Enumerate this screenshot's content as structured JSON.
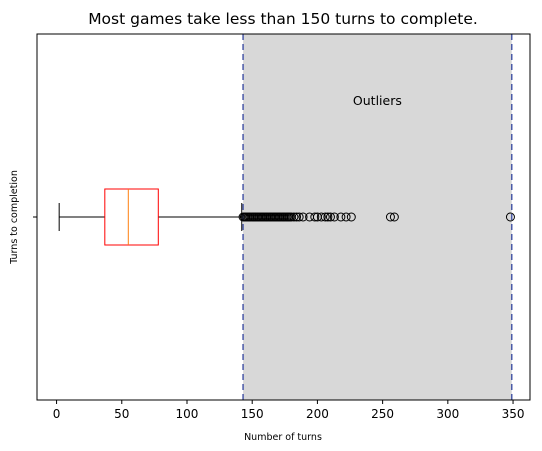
{
  "chart_data": {
    "type": "box",
    "orientation": "horizontal",
    "title": "Most games take less than 150 turns to complete.",
    "xlabel": "Number of turns",
    "ylabel": "Turns to completion",
    "xlim": [
      -15,
      363
    ],
    "xticks": [
      0,
      50,
      100,
      150,
      200,
      250,
      300,
      350
    ],
    "xtick_labels": [
      "0",
      "50",
      "100",
      "150",
      "200",
      "250",
      "300",
      "350"
    ],
    "box": {
      "whisker_low": 2,
      "q1": 37,
      "median": 55,
      "q3": 78,
      "whisker_high": 142,
      "outliers": [
        143,
        144,
        145,
        146,
        147,
        148,
        149,
        150,
        151,
        152,
        153,
        154,
        155,
        156,
        157,
        158,
        159,
        160,
        161,
        162,
        163,
        164,
        165,
        166,
        167,
        168,
        169,
        170,
        171,
        172,
        173,
        174,
        175,
        176,
        177,
        178,
        179,
        180,
        182,
        184,
        186,
        189,
        194,
        198,
        200,
        203,
        206,
        208,
        210,
        213,
        218,
        222,
        226,
        256,
        259,
        348
      ]
    },
    "outlier_region": {
      "x_start": 143,
      "x_end": 349,
      "label": "Outliers",
      "fill": "#d8d8d8",
      "line_color": "#4a5aa8"
    },
    "colors": {
      "box_edge": "#ff0000",
      "median": "#ff7f0e",
      "whisker": "#000000",
      "outlier": "#000000"
    }
  }
}
